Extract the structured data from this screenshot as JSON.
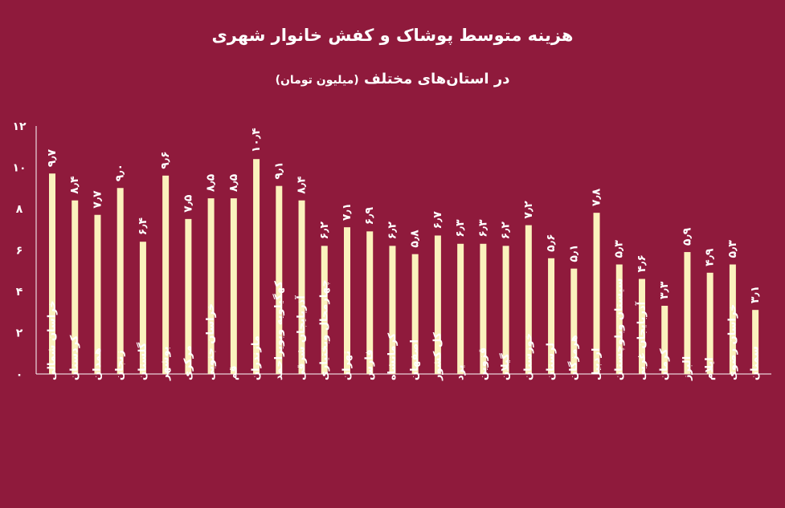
{
  "chart_data": {
    "type": "bar",
    "title": "هزینه متوسط پوشاک و کفش خانوار شهری",
    "subtitle": "در استان‌های مختلف",
    "unit": "(میلیون تومان)",
    "xlabel": "",
    "ylabel": "",
    "ylim": [
      0,
      12
    ],
    "yticks": [
      "۰",
      "۲",
      "۴",
      "۶",
      "۸",
      "۱۰",
      "۱۲"
    ],
    "grid": false,
    "legend": "none",
    "colors": {
      "background": "#8f1a3c",
      "bar": "#fbf2bd",
      "text": "#ffffff",
      "axis": "#ffffff"
    },
    "categories": [
      "خراسان شمالی",
      "کردستان",
      "همدان",
      "زنجان",
      "گلستان",
      "بوشهر",
      "مرکزی",
      "خراسان جنوبی",
      "قم",
      "مازندران",
      "کهگیلویه وبویراحمد",
      "آذربایجان شرقی",
      "چهارمحال وبختیاری",
      "تهران",
      "فارس",
      "کرمانشاه",
      "اصفهان",
      "کل کشور",
      "یزد",
      "قزوین",
      "گیلان",
      "خوزستان",
      "لرستان",
      "هرمزگان",
      "اردبیل",
      "سیستان وبلوچستان",
      "آذربایجان غربی",
      "کرمان",
      "البرز",
      "ایلام",
      "خراسان رضوی",
      "سمنان"
    ],
    "values": [
      9.7,
      8.4,
      7.7,
      9.0,
      6.4,
      9.6,
      7.5,
      8.5,
      8.5,
      10.4,
      9.1,
      8.4,
      6.2,
      7.1,
      6.9,
      6.2,
      5.8,
      6.7,
      6.3,
      6.3,
      6.2,
      7.2,
      5.6,
      5.1,
      7.8,
      5.3,
      4.6,
      3.3,
      5.9,
      4.9,
      5.3,
      3.1
    ],
    "value_labels": [
      "۹٫۷",
      "۸٫۴",
      "۷٫۷",
      "۹٫۰",
      "۶٫۴",
      "۹٫۶",
      "۷٫۵",
      "۸٫۵",
      "۸٫۵",
      "۱۰٫۴",
      "۹٫۱",
      "۸٫۴",
      "۶٫۲",
      "۷٫۱",
      "۶٫۹",
      "۶٫۲",
      "۵٫۸",
      "۶٫۷",
      "۶٫۳",
      "۶٫۳",
      "۶٫۲",
      "۷٫۲",
      "۵٫۶",
      "۵٫۱",
      "۷٫۸",
      "۵٫۳",
      "۴٫۶",
      "۳٫۳",
      "۵٫۹",
      "۴٫۹",
      "۵٫۳",
      "۳٫۱"
    ]
  }
}
